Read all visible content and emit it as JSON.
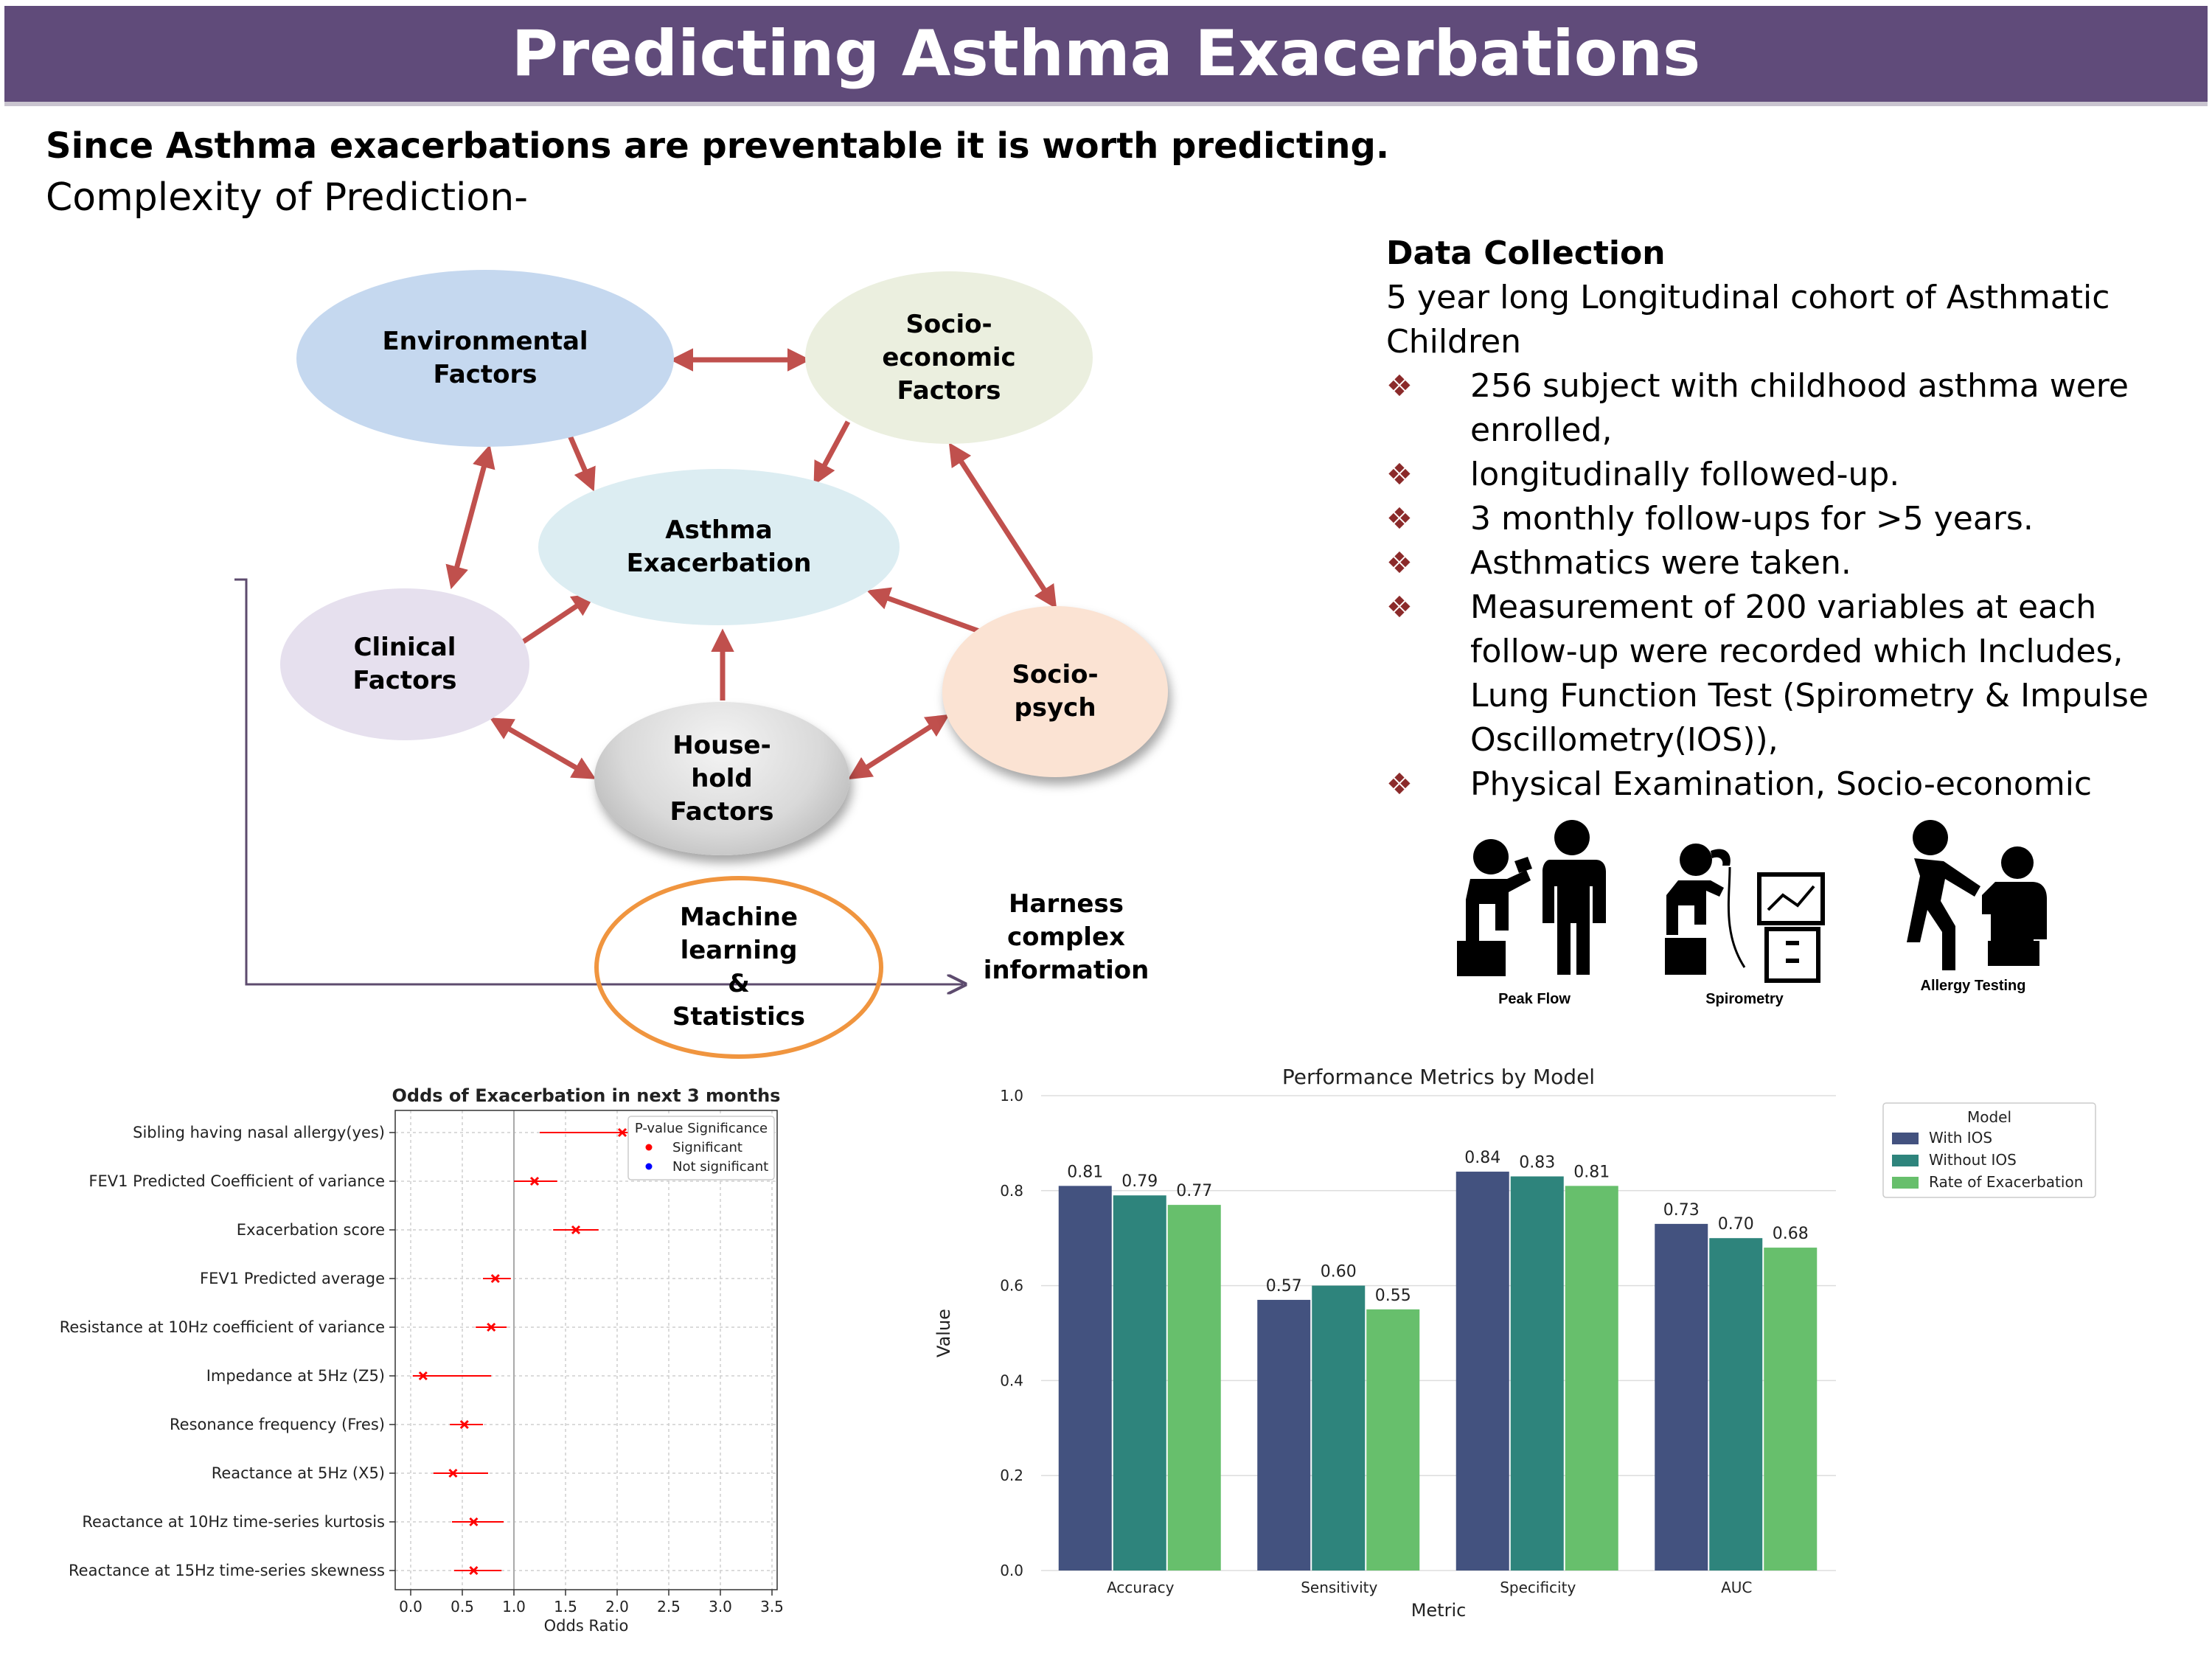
{
  "title": "Predicting Asthma Exacerbations",
  "subtitle_bold": "Since Asthma exacerbations are preventable it is worth predicting.",
  "subtitle": "Complexity of Prediction-",
  "diagram": {
    "environmental": "Environmental Factors",
    "socioeconomic": "Socio-economic Factors",
    "asthma": "Asthma Exacerbation",
    "clinical": "Clinical Factors",
    "sociopsych": "Socio-psych",
    "household": "House-hold Factors",
    "ml": "Machine learning & Statistics",
    "harness": "Harness complex information"
  },
  "data_collection": {
    "heading": "Data Collection",
    "intro": [
      "5 year long Longitudinal cohort of Asthmatic",
      "Children"
    ],
    "bullets": [
      [
        "256 subject with childhood asthma were",
        "enrolled,"
      ],
      [
        "longitudinally followed-up."
      ],
      [
        "3 monthly follow-ups for >5 years."
      ],
      [
        "Asthmatics were taken."
      ],
      [
        "Measurement of 200 variables  at each",
        "follow-up were recorded which Includes,",
        "Lung Function Test (Spirometry & Impulse",
        "Oscillometry(IOS)),"
      ],
      [
        "Physical Examination, Socio-economic"
      ]
    ],
    "bullet_symbol": "❖"
  },
  "icons": [
    {
      "name": "peak-flow-icon",
      "label": "Peak Flow"
    },
    {
      "name": "spirometry-icon",
      "label": "Spirometry"
    },
    {
      "name": "allergy-testing-icon",
      "label": "Allergy Testing"
    }
  ],
  "chart_data": [
    {
      "type": "scatter",
      "title": "Odds of Exacerbation in next 3 months",
      "xlabel": "Odds Ratio",
      "ylabel": "",
      "xlim": [
        -0.15,
        3.55
      ],
      "xticks": [
        "0.0",
        "0.5",
        "1.0",
        "1.5",
        "2.0",
        "2.5",
        "3.0",
        "3.5"
      ],
      "reference_line": 1.0,
      "grid": true,
      "legend_title": "P-value Significance",
      "legend": [
        {
          "label": "Significant",
          "color": "#ff0000"
        },
        {
          "label": "Not significant",
          "color": "#0000ff"
        }
      ],
      "legend_position": "top-right",
      "rows": [
        {
          "label": "Sibling having nasal allergy(yes)",
          "or": 2.05,
          "low": 1.25,
          "high": 3.5
        },
        {
          "label": "FEV1 Predicted Coefficient of variance",
          "or": 1.2,
          "low": 1.0,
          "high": 1.42
        },
        {
          "label": "Exacerbation score",
          "or": 1.6,
          "low": 1.38,
          "high": 1.82
        },
        {
          "label": "FEV1 Predicted average",
          "or": 0.82,
          "low": 0.7,
          "high": 0.97
        },
        {
          "label": "Resistance at 10Hz coefficient of variance",
          "or": 0.78,
          "low": 0.63,
          "high": 0.93
        },
        {
          "label": "Impedance at 5Hz (Z5)",
          "or": 0.12,
          "low": 0.02,
          "high": 0.78
        },
        {
          "label": "Resonance frequency (Fres)",
          "or": 0.52,
          "low": 0.38,
          "high": 0.7
        },
        {
          "label": "Reactance at 5Hz (X5)",
          "or": 0.41,
          "low": 0.22,
          "high": 0.75
        },
        {
          "label": "Reactance at 10Hz time-series kurtosis",
          "or": 0.61,
          "low": 0.4,
          "high": 0.9
        },
        {
          "label": "Reactance at 15Hz  time-series skewness",
          "or": 0.61,
          "low": 0.42,
          "high": 0.88
        }
      ],
      "significant_color": "#ff0000"
    },
    {
      "type": "bar",
      "title": "Performance Metrics by Model",
      "xlabel": "Metric",
      "ylabel": "Value",
      "ylim": [
        0,
        1.0
      ],
      "yticks": [
        "0.0",
        "0.2",
        "0.4",
        "0.6",
        "0.8",
        "1.0"
      ],
      "categories": [
        "Accuracy",
        "Sensitivity",
        "Specificity",
        "AUC"
      ],
      "legend_title": "Model",
      "legend_position": "top-right",
      "grid": true,
      "series": [
        {
          "name": "With IOS",
          "color": "#43527f",
          "values": [
            0.81,
            0.57,
            0.84,
            0.73
          ],
          "labels": [
            "0.81",
            "0.57",
            "0.84",
            "0.73"
          ]
        },
        {
          "name": "Without IOS",
          "color": "#2e847c",
          "values": [
            0.79,
            0.6,
            0.83,
            0.7
          ],
          "labels": [
            "0.79",
            "0.60",
            "0.83",
            "0.70"
          ]
        },
        {
          "name": "Rate of Exacerbation",
          "color": "#67bf6c",
          "values": [
            0.77,
            0.55,
            0.81,
            0.68
          ],
          "labels": [
            "0.77",
            "0.55",
            "0.81",
            "0.68"
          ]
        }
      ]
    }
  ],
  "colors": {
    "title_bar": "#604b7a",
    "arrow": "#c0504d",
    "bullet": "#8b2a2a",
    "ml_outline": "#f0953f",
    "connector": "#5d4b6e"
  }
}
